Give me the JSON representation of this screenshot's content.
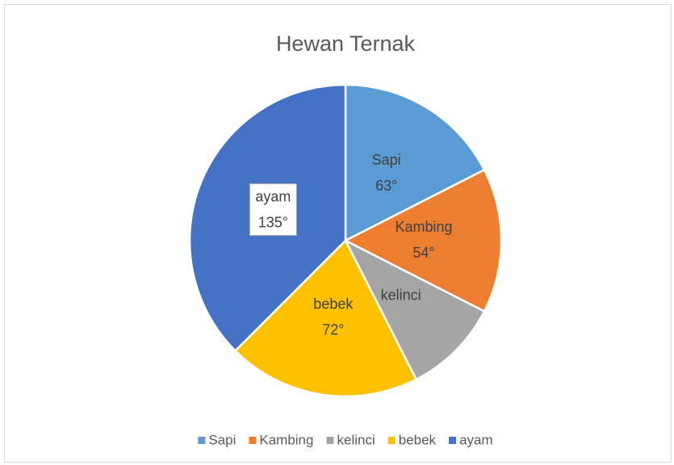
{
  "chart_data": {
    "type": "pie",
    "title": "Hewan Ternak",
    "categories": [
      "Sapi",
      "Kambing",
      "kelinci",
      "bebek",
      "ayam"
    ],
    "values": [
      63,
      54,
      36,
      72,
      135
    ],
    "value_labels": [
      "63°",
      "54°",
      null,
      "72°",
      "135°"
    ],
    "colors": [
      "#5b9bd5",
      "#ed7d31",
      "#a5a5a5",
      "#ffc000",
      "#4472c4"
    ],
    "legend": "bottom"
  }
}
